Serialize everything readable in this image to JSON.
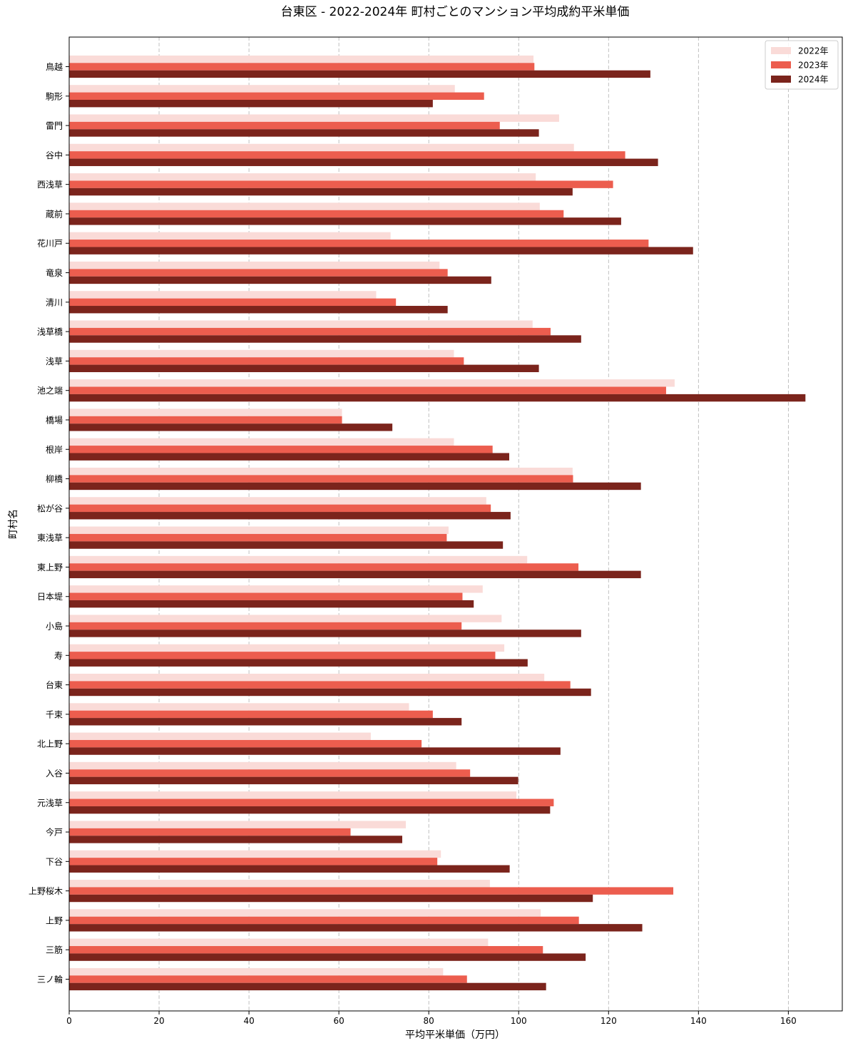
{
  "chart_data": {
    "type": "bar",
    "orientation": "horizontal",
    "title": "台東区 - 2022-2024年 町村ごとのマンション平均成約平米単価",
    "xlabel": "平均平米単価（万円）",
    "ylabel": "町村名",
    "xlim": [
      0,
      172
    ],
    "xticks": [
      0,
      20,
      40,
      60,
      80,
      100,
      120,
      140,
      160
    ],
    "grid": "x-dashed",
    "legend_position": "top-right",
    "categories": [
      "鳥越",
      "駒形",
      "雷門",
      "谷中",
      "西浅草",
      "蔵前",
      "花川戸",
      "竜泉",
      "清川",
      "浅草橋",
      "浅草",
      "池之端",
      "橋場",
      "根岸",
      "柳橋",
      "松が谷",
      "東浅草",
      "東上野",
      "日本堤",
      "小島",
      "寿",
      "台東",
      "千束",
      "北上野",
      "入谷",
      "元浅草",
      "今戸",
      "下谷",
      "上野桜木",
      "上野",
      "三筋",
      "三ノ輪"
    ],
    "series": [
      {
        "name": "2022年",
        "color": "#fadbd8",
        "values": [
          103.3,
          85.8,
          109.0,
          112.3,
          103.8,
          104.7,
          71.5,
          82.4,
          68.3,
          103.1,
          85.6,
          134.7,
          60.7,
          85.6,
          112.0,
          92.8,
          84.4,
          101.9,
          92.0,
          96.2,
          96.8,
          105.7,
          75.6,
          67.1,
          86.1,
          99.5,
          74.9,
          82.7,
          93.6,
          104.9,
          93.2,
          83.2
        ]
      },
      {
        "name": "2023年",
        "color": "#ec5d4e",
        "values": [
          103.5,
          92.3,
          95.8,
          123.7,
          121.0,
          110.0,
          128.9,
          84.2,
          72.7,
          107.1,
          87.8,
          132.8,
          60.7,
          94.2,
          112.1,
          93.8,
          84.0,
          113.3,
          87.5,
          87.3,
          94.8,
          111.5,
          80.9,
          78.4,
          89.2,
          107.8,
          62.6,
          81.9,
          134.4,
          113.4,
          105.4,
          88.5
        ]
      },
      {
        "name": "2024年",
        "color": "#7b241c",
        "values": [
          129.3,
          80.9,
          104.5,
          131.0,
          112.0,
          122.8,
          138.8,
          93.9,
          84.2,
          113.9,
          104.5,
          163.8,
          71.9,
          97.9,
          127.2,
          98.2,
          96.5,
          127.2,
          90.0,
          113.9,
          102.0,
          116.1,
          87.3,
          109.3,
          99.9,
          107.0,
          74.1,
          98.0,
          116.5,
          127.5,
          114.9,
          106.1
        ]
      }
    ]
  }
}
